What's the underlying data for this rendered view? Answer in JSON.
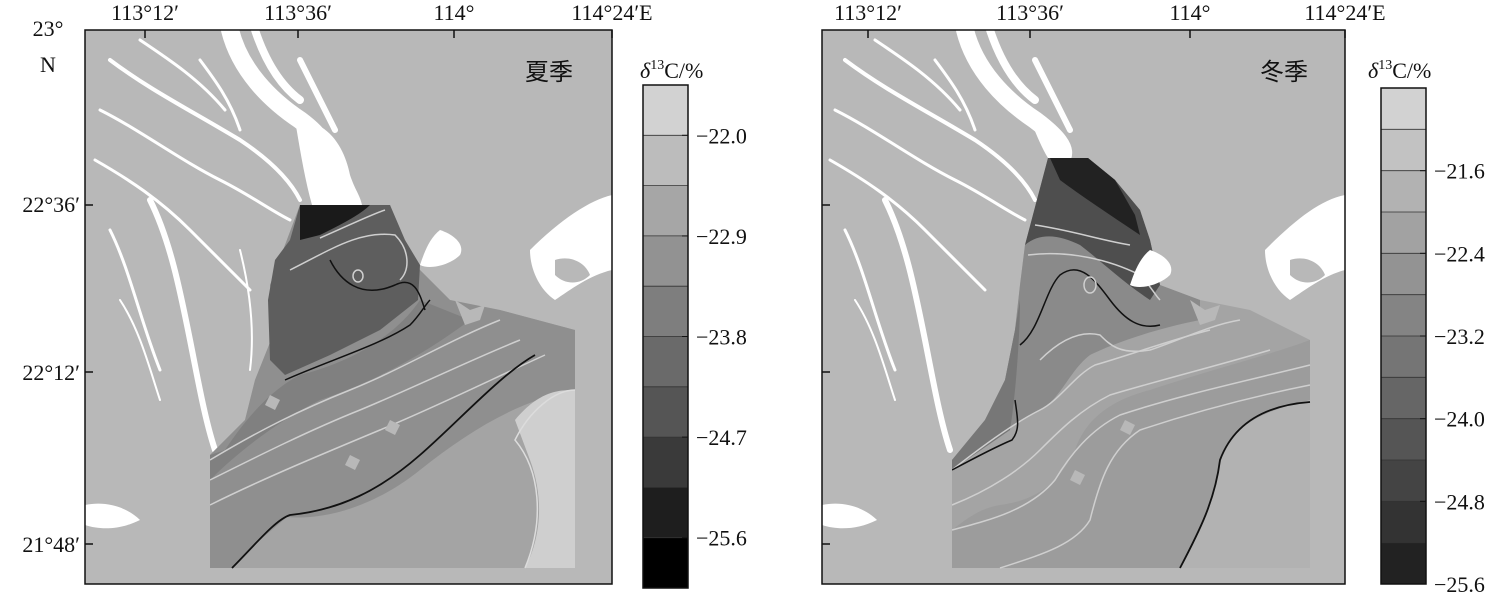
{
  "axes": {
    "lon_ticks": [
      "113°12′",
      "113°36′",
      "114°",
      "114°24′E"
    ],
    "lat_ticks": [
      "22°36′",
      "22°12′",
      "21°48′"
    ],
    "lat_top": [
      "23°",
      "N"
    ]
  },
  "colorbar_title": {
    "delta": "δ",
    "superscript": "13",
    "rest": "C/%"
  },
  "panels": [
    {
      "season": "夏季",
      "colorbar_labels": [
        "−22.0",
        "−22.9",
        "−23.8",
        "−24.7",
        "−25.6"
      ],
      "colorbar_colors": [
        "#d2d2d2",
        "#bcbcbc",
        "#a6a6a6",
        "#929292",
        "#7e7e7e",
        "#6a6a6a",
        "#555555",
        "#3a3a3a",
        "#1e1e1e",
        "#000000"
      ]
    },
    {
      "season": "冬季",
      "colorbar_labels": [
        "−21.6",
        "−22.4",
        "−23.2",
        "−24.0",
        "−24.8",
        "−25.6"
      ],
      "colorbar_colors": [
        "#d2d2d2",
        "#c2c2c2",
        "#b2b2b2",
        "#a2a2a2",
        "#939393",
        "#848484",
        "#757575",
        "#666666",
        "#555555",
        "#444444",
        "#333333",
        "#222222"
      ]
    }
  ]
}
